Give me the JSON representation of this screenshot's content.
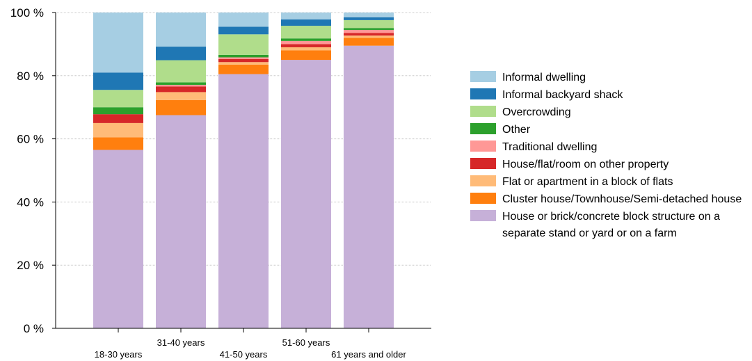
{
  "chart_data": {
    "type": "bar",
    "stacked": true,
    "categories": [
      "18-30 years",
      "31-40 years",
      "41-50 years",
      "51-60 years",
      "61 years and older"
    ],
    "yticks": [
      "0 %",
      "20 %",
      "40 %",
      "60 %",
      "80 %",
      "100 %"
    ],
    "ylim": [
      0,
      100
    ],
    "grid": true,
    "legend_position": "right",
    "series": [
      {
        "name": "House or brick/concrete block structure on a separate stand or yard or on a farm",
        "color": "#c6b0d8",
        "values": [
          56.5,
          67.5,
          80.5,
          85.0,
          89.5
        ]
      },
      {
        "name": "Cluster house/Townhouse/Semi-detached house",
        "color": "#ff7f0e",
        "values": [
          4.0,
          4.8,
          3.0,
          3.0,
          2.5
        ]
      },
      {
        "name": "Flat or apartment in a block of flats",
        "color": "#ffbb78",
        "values": [
          4.5,
          2.5,
          0.8,
          1.0,
          0.7
        ]
      },
      {
        "name": "House/flat/room on other property",
        "color": "#d62728",
        "values": [
          2.8,
          1.8,
          1.0,
          1.0,
          0.8
        ]
      },
      {
        "name": "Traditional dwelling",
        "color": "#ff9896",
        "values": [
          0.0,
          0.5,
          0.5,
          1.0,
          1.0
        ]
      },
      {
        "name": "Other",
        "color": "#2ca02c",
        "values": [
          2.2,
          0.8,
          0.8,
          0.8,
          0.6
        ]
      },
      {
        "name": "Overcrowding",
        "color": "#b0dd8b",
        "values": [
          5.5,
          7.0,
          6.5,
          4.0,
          2.5
        ]
      },
      {
        "name": "Informal backyard shack",
        "color": "#1f77b4",
        "values": [
          5.5,
          4.3,
          2.4,
          2.0,
          0.9
        ]
      },
      {
        "name": "Informal dwelling",
        "color": "#a6cee3",
        "values": [
          19.0,
          10.8,
          4.5,
          2.2,
          1.5
        ]
      }
    ],
    "legend": [
      "Informal dwelling",
      "Informal backyard shack",
      "Overcrowding",
      "Other",
      "Traditional dwelling",
      "House/flat/room on other property",
      "Flat or apartment in a block of flats",
      "Cluster house/Townhouse/Semi-detached house",
      "House or brick/concrete block structure on a separate stand or yard or on a farm"
    ],
    "legend_colors": [
      "#a6cee3",
      "#1f77b4",
      "#b0dd8b",
      "#2ca02c",
      "#ff9896",
      "#d62728",
      "#ffbb78",
      "#ff7f0e",
      "#c6b0d8"
    ]
  }
}
